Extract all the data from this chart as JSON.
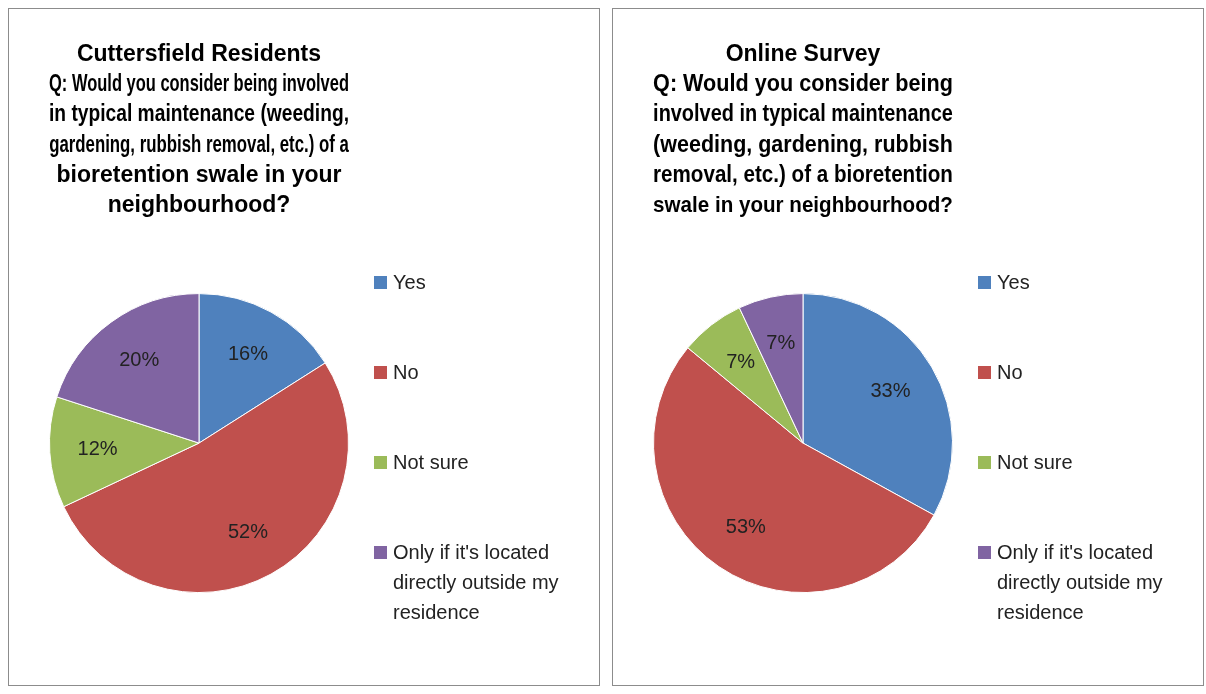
{
  "chart_data": [
    {
      "type": "pie",
      "title": "Cuttersfield Residents\nQ: Would you consider being involved\nin typical maintenance (weeding,\ngardening, rubbish removal, etc.) of a\nbioretention swale in your\nneighbourhood?",
      "categories": [
        "Yes",
        "No",
        "Not sure",
        "Only if it's located directly outside my residence"
      ],
      "values": [
        16,
        52,
        12,
        20
      ],
      "value_labels": [
        "16%",
        "52%",
        "12%",
        "20%"
      ],
      "colors": [
        "#4f81bd",
        "#c0504d",
        "#9bbb59",
        "#8064a2"
      ],
      "legend": "right"
    },
    {
      "type": "pie",
      "title": "Online Survey\nQ: Would you consider being\ninvolved in typical maintenance\n(weeding, gardening, rubbish\nremoval, etc.) of a bioretention\nswale in your neighbourhood?",
      "categories": [
        "Yes",
        "No",
        "Not sure",
        "Only if it's located directly outside my residence"
      ],
      "values": [
        33,
        53,
        7,
        7
      ],
      "value_labels": [
        "33%",
        "53%",
        "7%",
        "7%"
      ],
      "colors": [
        "#4f81bd",
        "#c0504d",
        "#9bbb59",
        "#8064a2"
      ],
      "legend": "right"
    }
  ]
}
